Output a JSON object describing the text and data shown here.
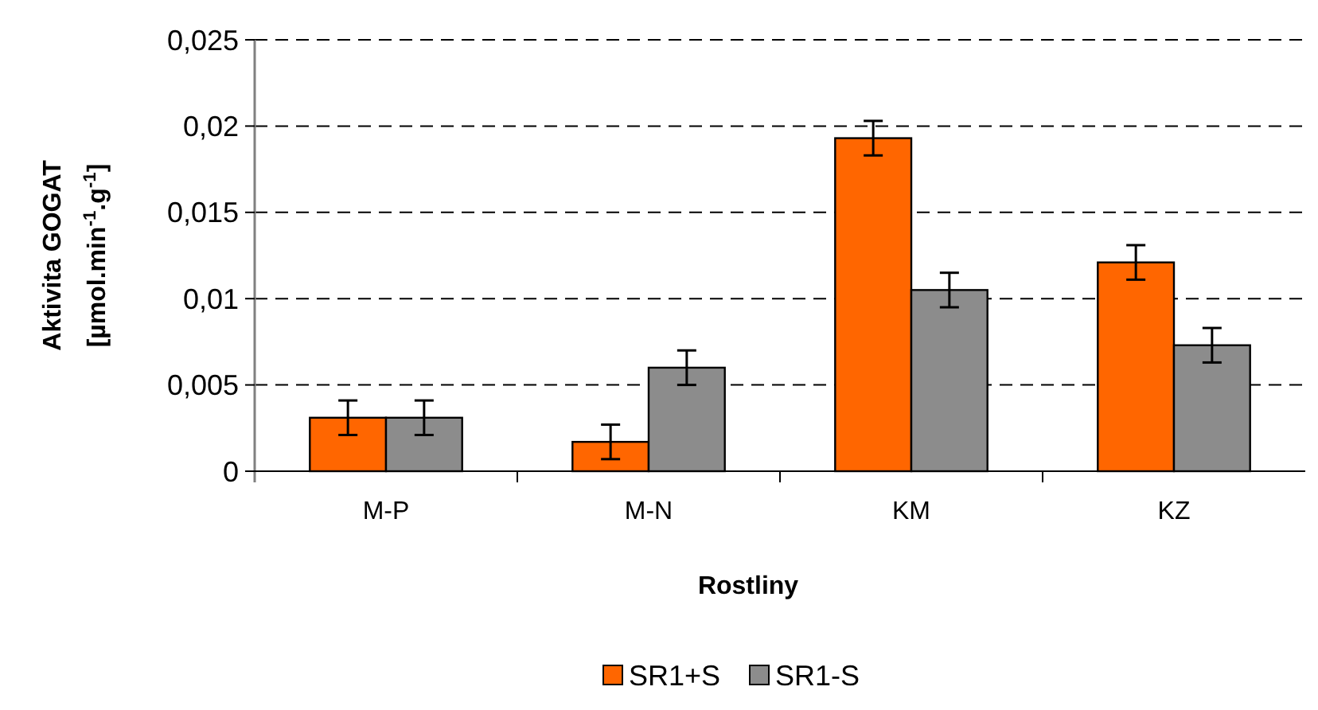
{
  "chart_data": {
    "type": "bar",
    "categories": [
      "M-P",
      "M-N",
      "KM",
      "KZ"
    ],
    "series": [
      {
        "name": "SR1+S",
        "color": "#ff6600",
        "values": [
          0.0031,
          0.0017,
          0.0193,
          0.0121
        ],
        "errors": [
          0.001,
          0.001,
          0.001,
          0.001
        ]
      },
      {
        "name": "SR1-S",
        "color": "#8c8c8c",
        "values": [
          0.0031,
          0.006,
          0.0105,
          0.0073
        ],
        "errors": [
          0.001,
          0.001,
          0.001,
          0.001
        ]
      }
    ],
    "xlabel": "Rostliny",
    "ylabel": "Aktivita GOGAT\n[µmol.min$^{-1}$.g$^{-1}$]",
    "ylim": [
      0,
      0.025
    ],
    "yticks": [
      {
        "value": 0,
        "label": "0"
      },
      {
        "value": 0.005,
        "label": "0,005"
      },
      {
        "value": 0.01,
        "label": "0,01"
      },
      {
        "value": 0.015,
        "label": "0,015"
      },
      {
        "value": 0.02,
        "label": "0,02"
      },
      {
        "value": 0.025,
        "label": "0,025"
      }
    ],
    "grid": "y",
    "line_style": "dashed",
    "legend": "bottom"
  }
}
